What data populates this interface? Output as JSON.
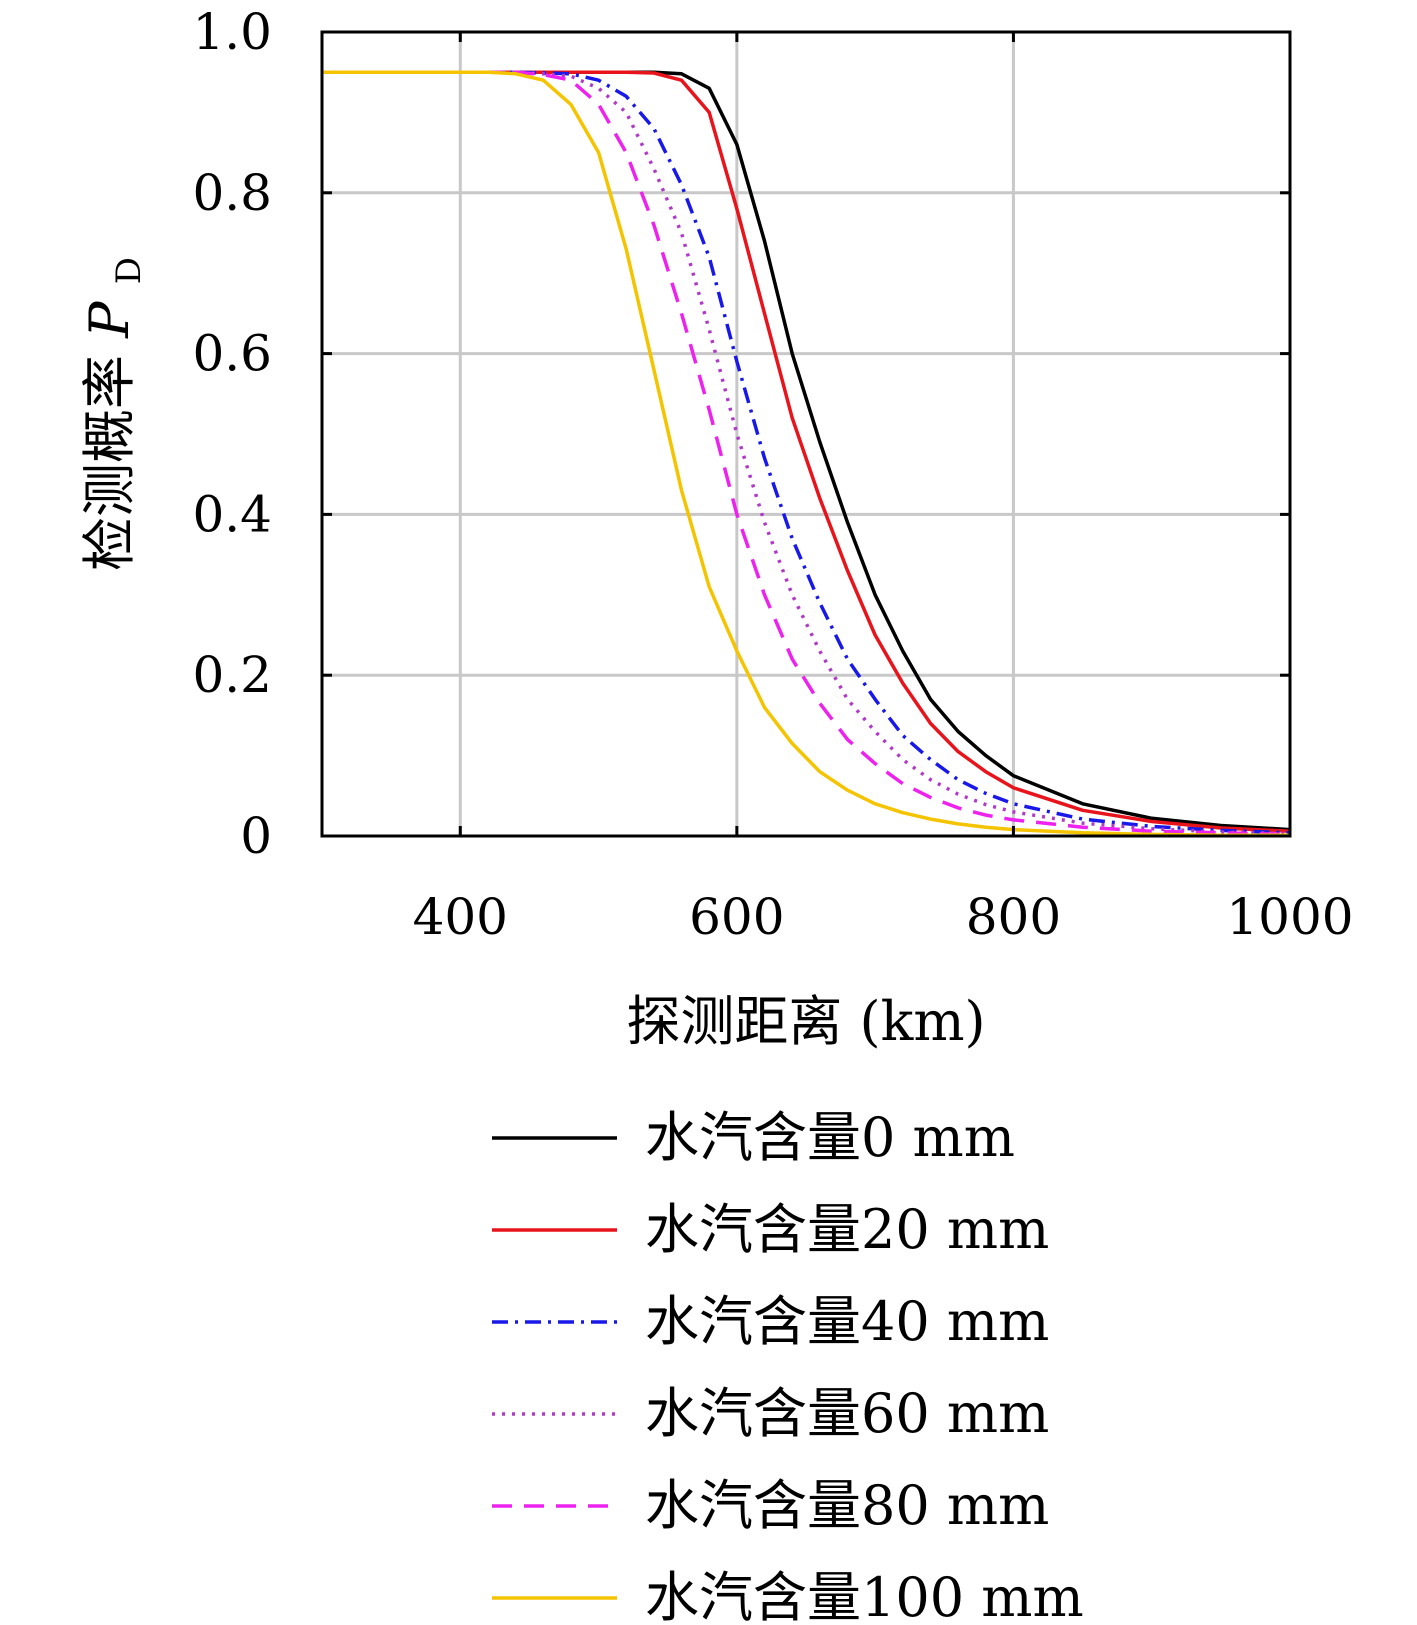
{
  "chart_data": {
    "type": "line",
    "title": "",
    "xlabel": "探测距离 (km)",
    "ylabel": "检测概率",
    "ylabel_symbol": "P",
    "ylabel_subscript": "D",
    "xlim": [
      300,
      1000
    ],
    "ylim": [
      0,
      1.0
    ],
    "x_ticks": [
      400,
      600,
      800,
      1000
    ],
    "y_ticks": [
      0,
      0.2,
      0.4,
      0.6,
      0.8,
      1.0
    ],
    "x_tick_labels": [
      "400",
      "600",
      "800",
      "1000"
    ],
    "y_tick_labels": [
      "0",
      "0.2",
      "0.4",
      "0.6",
      "0.8",
      "1.0"
    ],
    "grid": true,
    "legend_position": "bottom (below plot)",
    "x": [
      300,
      400,
      420,
      440,
      460,
      480,
      500,
      520,
      540,
      560,
      580,
      600,
      620,
      640,
      660,
      680,
      700,
      720,
      740,
      760,
      780,
      800,
      850,
      900,
      950,
      1000
    ],
    "series": [
      {
        "name": "水汽含量0 mm",
        "color": "#000000",
        "dash": "solid",
        "values": [
          0.95,
          0.95,
          0.95,
          0.95,
          0.95,
          0.95,
          0.95,
          0.95,
          0.95,
          0.948,
          0.93,
          0.86,
          0.74,
          0.6,
          0.49,
          0.39,
          0.3,
          0.23,
          0.17,
          0.13,
          0.1,
          0.075,
          0.04,
          0.022,
          0.013,
          0.008
        ]
      },
      {
        "name": "水汽含量20 mm",
        "color": "#e8141c",
        "dash": "solid",
        "values": [
          0.95,
          0.95,
          0.95,
          0.95,
          0.95,
          0.95,
          0.95,
          0.95,
          0.949,
          0.94,
          0.9,
          0.78,
          0.65,
          0.52,
          0.42,
          0.33,
          0.25,
          0.19,
          0.14,
          0.105,
          0.08,
          0.06,
          0.032,
          0.018,
          0.01,
          0.006
        ]
      },
      {
        "name": "水汽含量40 mm",
        "color": "#1818e8",
        "dash": "dashdot",
        "values": [
          0.95,
          0.95,
          0.95,
          0.95,
          0.949,
          0.948,
          0.94,
          0.92,
          0.88,
          0.81,
          0.72,
          0.59,
          0.47,
          0.37,
          0.29,
          0.22,
          0.17,
          0.125,
          0.095,
          0.07,
          0.053,
          0.04,
          0.021,
          0.012,
          0.007,
          0.004
        ]
      },
      {
        "name": "水汽含量60 mm",
        "color": "#b03ac8",
        "dash": "dotted",
        "values": [
          0.95,
          0.95,
          0.95,
          0.95,
          0.948,
          0.945,
          0.93,
          0.9,
          0.83,
          0.75,
          0.63,
          0.5,
          0.39,
          0.3,
          0.23,
          0.17,
          0.13,
          0.095,
          0.07,
          0.052,
          0.039,
          0.03,
          0.016,
          0.009,
          0.005,
          0.003
        ]
      },
      {
        "name": "水汽含量80 mm",
        "color": "#ee22ee",
        "dash": "dashed",
        "values": [
          0.95,
          0.95,
          0.95,
          0.95,
          0.947,
          0.94,
          0.91,
          0.85,
          0.76,
          0.65,
          0.53,
          0.4,
          0.3,
          0.22,
          0.165,
          0.12,
          0.09,
          0.065,
          0.048,
          0.035,
          0.026,
          0.02,
          0.011,
          0.006,
          0.004,
          0.002
        ]
      },
      {
        "name": "水汽含量100 mm",
        "color": "#f5c400",
        "dash": "solid",
        "values": [
          0.95,
          0.95,
          0.95,
          0.948,
          0.94,
          0.91,
          0.85,
          0.73,
          0.58,
          0.43,
          0.31,
          0.23,
          0.16,
          0.115,
          0.08,
          0.057,
          0.04,
          0.029,
          0.021,
          0.015,
          0.011,
          0.008,
          0.004,
          0.002,
          0.001,
          0.001
        ]
      }
    ]
  }
}
